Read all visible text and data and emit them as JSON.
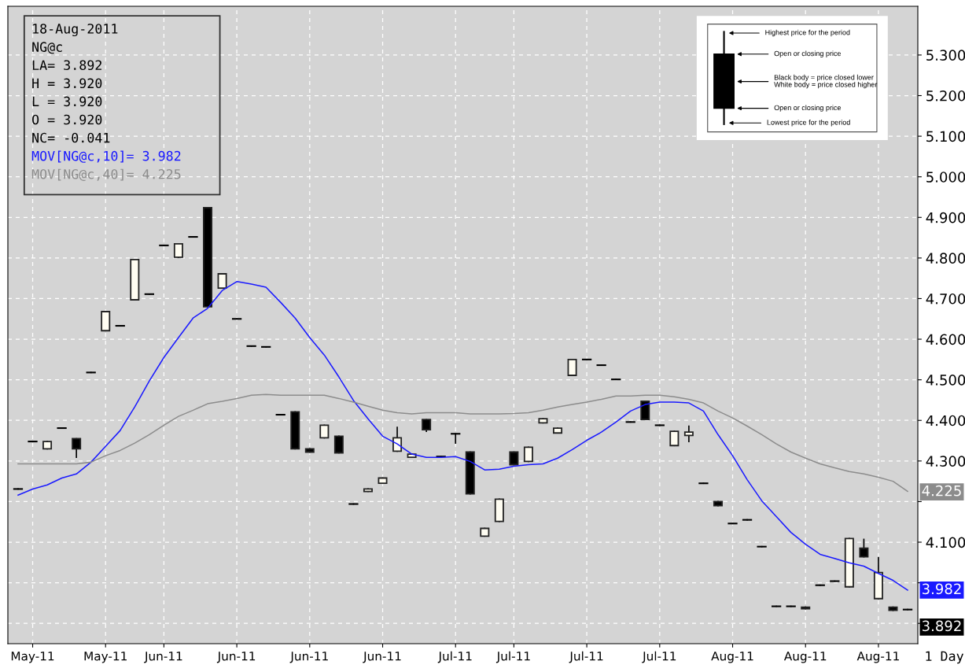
{
  "chart_data": {
    "type": "candlestick",
    "categories": [
      null,
      "May-11",
      null,
      null,
      null,
      null,
      "May-11",
      null,
      null,
      null,
      "Jun-11",
      null,
      null,
      null,
      null,
      "Jun-11",
      null,
      null,
      null,
      null,
      "Jun-11",
      null,
      null,
      null,
      null,
      "Jun-11",
      null,
      null,
      null,
      null,
      "Jul-11",
      null,
      null,
      null,
      "Jul-11",
      null,
      null,
      null,
      null,
      "Jul-11",
      null,
      null,
      null,
      null,
      "Jul-11",
      null,
      null,
      null,
      null,
      "Aug-11",
      null,
      null,
      null,
      null,
      "Aug-11",
      null,
      null,
      null,
      null,
      "Aug-11",
      null,
      null
    ],
    "ohlc": [
      [
        4.231,
        4.231,
        4.231,
        4.231
      ],
      [
        4.348,
        4.348,
        4.348,
        4.348
      ],
      [
        4.33,
        4.348,
        4.33,
        4.348
      ],
      [
        4.381,
        4.381,
        4.381,
        4.381
      ],
      [
        4.355,
        4.355,
        4.309,
        4.33
      ],
      [
        4.518,
        4.518,
        4.518,
        4.518
      ],
      [
        4.621,
        4.668,
        4.621,
        4.668
      ],
      [
        4.633,
        4.633,
        4.633,
        4.633
      ],
      [
        4.697,
        4.796,
        4.697,
        4.796
      ],
      [
        4.711,
        4.711,
        4.711,
        4.711
      ],
      [
        4.831,
        4.831,
        4.831,
        4.831
      ],
      [
        4.802,
        4.835,
        4.802,
        4.835
      ],
      [
        4.852,
        4.852,
        4.852,
        4.852
      ],
      [
        4.924,
        4.924,
        4.68,
        4.68
      ],
      [
        4.726,
        4.761,
        4.726,
        4.761
      ],
      [
        4.65,
        4.65,
        4.65,
        4.65
      ],
      [
        4.583,
        4.583,
        4.583,
        4.583
      ],
      [
        4.581,
        4.581,
        4.581,
        4.581
      ],
      [
        4.414,
        4.414,
        4.414,
        4.414
      ],
      [
        4.421,
        4.421,
        4.33,
        4.33
      ],
      [
        4.33,
        4.33,
        4.322,
        4.322
      ],
      [
        4.357,
        4.388,
        4.357,
        4.388
      ],
      [
        4.361,
        4.361,
        4.32,
        4.32
      ],
      [
        4.194,
        4.194,
        4.194,
        4.194
      ],
      [
        4.225,
        4.231,
        4.225,
        4.231
      ],
      [
        4.245,
        4.258,
        4.245,
        4.258
      ],
      [
        4.324,
        4.383,
        4.324,
        4.357
      ],
      [
        4.309,
        4.317,
        4.309,
        4.317
      ],
      [
        4.402,
        4.402,
        4.373,
        4.377
      ],
      [
        4.311,
        4.311,
        4.311,
        4.311
      ],
      [
        4.367,
        4.367,
        4.344,
        4.367
      ],
      [
        4.322,
        4.322,
        4.219,
        4.219
      ],
      [
        4.115,
        4.134,
        4.115,
        4.134
      ],
      [
        4.151,
        4.206,
        4.151,
        4.206
      ],
      [
        4.322,
        4.322,
        4.291,
        4.291
      ],
      [
        4.299,
        4.334,
        4.299,
        4.334
      ],
      [
        4.394,
        4.404,
        4.394,
        4.404
      ],
      [
        4.369,
        4.381,
        4.369,
        4.381
      ],
      [
        4.511,
        4.55,
        4.511,
        4.55
      ],
      [
        4.55,
        4.55,
        4.55,
        4.55
      ],
      [
        4.536,
        4.536,
        4.536,
        4.536
      ],
      [
        4.501,
        4.501,
        4.501,
        4.501
      ],
      [
        4.396,
        4.396,
        4.396,
        4.396
      ],
      [
        4.447,
        4.447,
        4.402,
        4.402
      ],
      [
        4.388,
        4.388,
        4.388,
        4.388
      ],
      [
        4.338,
        4.373,
        4.338,
        4.373
      ],
      [
        4.363,
        4.386,
        4.348,
        4.371
      ],
      [
        4.245,
        4.245,
        4.245,
        4.245
      ],
      [
        4.2,
        4.2,
        4.19,
        4.19
      ],
      [
        4.146,
        4.146,
        4.146,
        4.146
      ],
      [
        4.155,
        4.155,
        4.155,
        4.155
      ],
      [
        4.089,
        4.089,
        4.089,
        4.089
      ],
      [
        3.942,
        3.942,
        3.942,
        3.942
      ],
      [
        3.942,
        3.942,
        3.942,
        3.942
      ],
      [
        3.94,
        3.94,
        3.936,
        3.936
      ],
      [
        3.994,
        3.994,
        3.994,
        3.994
      ],
      [
        4.004,
        4.004,
        4.004,
        4.004
      ],
      [
        3.99,
        4.109,
        3.99,
        4.109
      ],
      [
        4.085,
        4.107,
        4.064,
        4.064
      ],
      [
        3.961,
        4.062,
        3.961,
        4.025
      ],
      [
        3.94,
        3.94,
        3.932,
        3.932
      ],
      [
        3.934,
        3.934,
        3.934,
        3.934
      ]
    ],
    "series": [
      {
        "name": "MOV[NG@c,10]= 3.982",
        "type": "line",
        "color": "#1a1aff",
        "values": [
          4.216,
          4.231,
          4.241,
          4.258,
          4.268,
          4.297,
          4.336,
          4.375,
          4.433,
          4.497,
          4.555,
          4.604,
          4.652,
          4.676,
          4.72,
          4.742,
          4.736,
          4.728,
          4.691,
          4.652,
          4.604,
          4.561,
          4.507,
          4.449,
          4.404,
          4.361,
          4.342,
          4.317,
          4.309,
          4.309,
          4.311,
          4.299,
          4.278,
          4.28,
          4.287,
          4.291,
          4.293,
          4.307,
          4.328,
          4.351,
          4.371,
          4.396,
          4.423,
          4.439,
          4.445,
          4.445,
          4.443,
          4.423,
          4.365,
          4.313,
          4.254,
          4.202,
          4.163,
          4.124,
          4.095,
          4.07,
          4.06,
          4.049,
          4.041,
          4.023,
          4.006,
          3.982
        ]
      },
      {
        "name": "MOV[NG@c,40]= 4.225",
        "type": "line",
        "color": "#8c8c8c",
        "values": [
          4.293,
          4.293,
          4.293,
          4.293,
          4.293,
          4.297,
          4.313,
          4.326,
          4.344,
          4.365,
          4.388,
          4.41,
          4.425,
          4.441,
          4.447,
          4.454,
          4.462,
          4.464,
          4.462,
          4.462,
          4.462,
          4.462,
          4.454,
          4.445,
          4.435,
          4.425,
          4.419,
          4.416,
          4.419,
          4.419,
          4.419,
          4.416,
          4.416,
          4.416,
          4.417,
          4.419,
          4.425,
          4.433,
          4.439,
          4.445,
          4.452,
          4.46,
          4.46,
          4.462,
          4.462,
          4.458,
          4.452,
          4.443,
          4.423,
          4.406,
          4.386,
          4.365,
          4.342,
          4.322,
          4.307,
          4.293,
          4.283,
          4.274,
          4.268,
          4.26,
          4.25,
          4.225
        ]
      }
    ],
    "ylim": [
      3.85,
      5.42
    ],
    "yticks": [
      {
        "value": 3.9,
        "label": null
      },
      {
        "value": 4.0,
        "label": null
      },
      {
        "value": 4.1,
        "label": "4.100"
      },
      {
        "value": 4.2,
        "label": null
      },
      {
        "value": 4.3,
        "label": "4.300"
      },
      {
        "value": 4.4,
        "label": "4.400"
      },
      {
        "value": 4.5,
        "label": "4.500"
      },
      {
        "value": 4.6,
        "label": "4.600"
      },
      {
        "value": 4.7,
        "label": "4.700"
      },
      {
        "value": 4.8,
        "label": "4.800"
      },
      {
        "value": 4.9,
        "label": "4.900"
      },
      {
        "value": 5.0,
        "label": "5.000"
      },
      {
        "value": 5.1,
        "label": "5.100"
      },
      {
        "value": 5.2,
        "label": "5.200"
      },
      {
        "value": 5.3,
        "label": "5.300"
      }
    ],
    "grid": true,
    "legend": "top left",
    "annotations": [
      "18-Aug-2011",
      "NG@c",
      "LA= 3.892",
      "H = 3.920",
      "L = 3.920",
      "O = 3.920",
      "NC= -0.041",
      "Highest price for the period",
      "Open or closing price",
      "Black body = price closed lower\nWhite body = price closed higher",
      "Open or closing price",
      "Lowest price for the period",
      "4.225",
      "3.982",
      "3.892",
      "1 Day"
    ]
  }
}
